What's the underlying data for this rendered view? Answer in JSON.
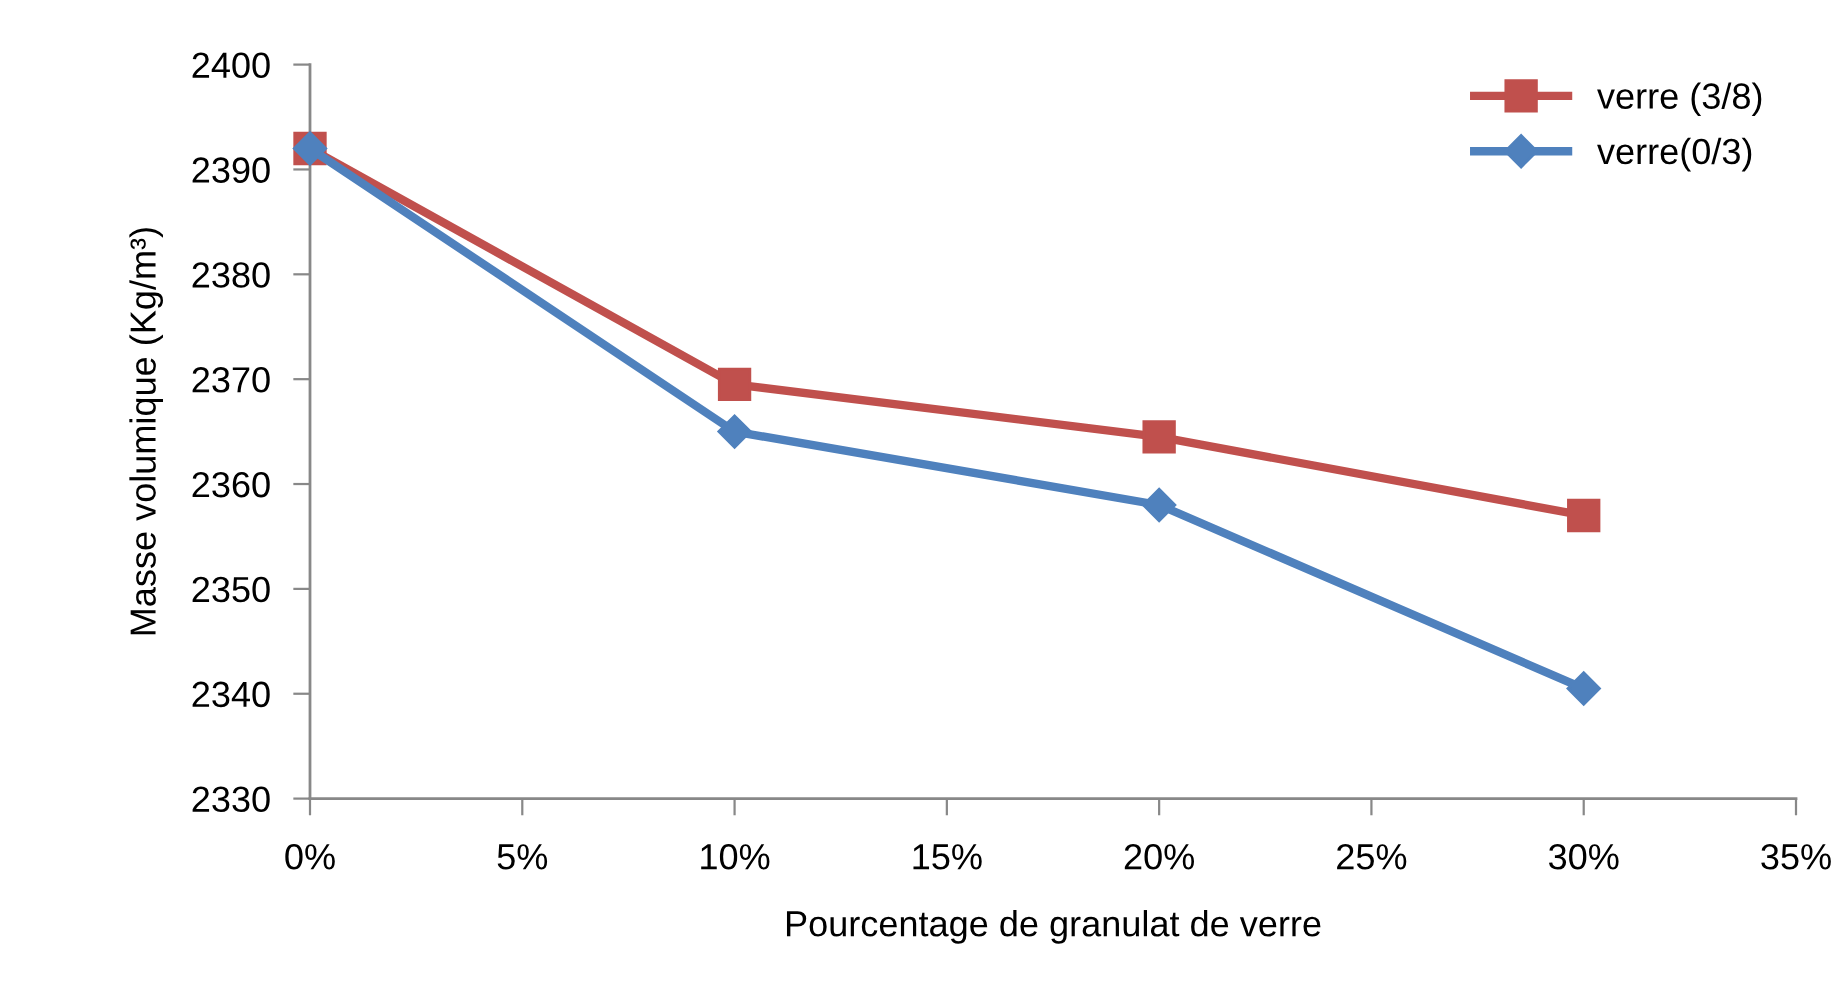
{
  "chart_data": {
    "type": "line",
    "xlabel": "Pourcentage de granulat de verre",
    "ylabel": "Masse volumique (Kg/m³)",
    "x": [
      0,
      10,
      20,
      30
    ],
    "series": [
      {
        "name": "verre (3/8)",
        "color": "#c0504d",
        "marker": "square",
        "values": [
          2392,
          2369.5,
          2364.5,
          2357
        ]
      },
      {
        "name": "verre(0/3)",
        "color": "#4f81bd",
        "marker": "diamond",
        "values": [
          2392,
          2365,
          2358,
          2340.5
        ]
      }
    ],
    "xlim": [
      0,
      35
    ],
    "xticks": [
      {
        "value": 0,
        "label": "0%"
      },
      {
        "value": 5,
        "label": "5%"
      },
      {
        "value": 10,
        "label": "10%"
      },
      {
        "value": 15,
        "label": "15%"
      },
      {
        "value": 20,
        "label": "20%"
      },
      {
        "value": 25,
        "label": "25%"
      },
      {
        "value": 30,
        "label": "30%"
      },
      {
        "value": 35,
        "label": "35%"
      }
    ],
    "ylim": [
      2330,
      2400
    ],
    "yticks": [
      2330,
      2340,
      2350,
      2360,
      2370,
      2380,
      2390,
      2400
    ],
    "grid": false,
    "legend": "top right",
    "line_style": "solid"
  }
}
